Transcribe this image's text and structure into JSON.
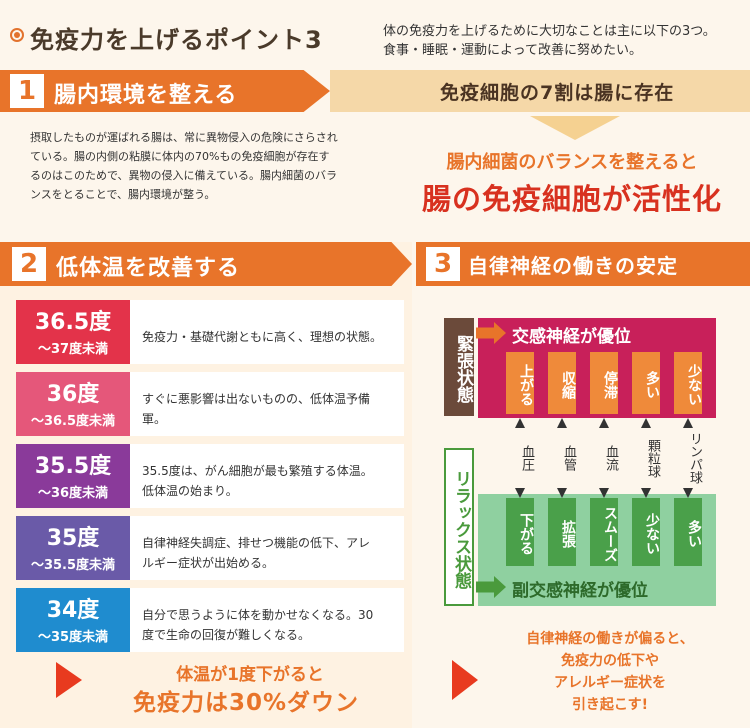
{
  "header": {
    "title": "免疫力を上げるポイント3",
    "intro_line1": "体の免疫力を上げるために大切なことは主に以下の3つ。",
    "intro_line2": "食事・睡眠・運動によって改善に努めたい。"
  },
  "section1": {
    "number": "1",
    "title": "腸内環境を整える",
    "headline": "免疫細胞の7割は腸に存在",
    "body": [
      "摂取したものが運ばれる腸は、常に異物侵入の危険にさらされ",
      "ている。腸の内側の粘膜に体内の70%もの免疫細胞が存在す",
      "るのはこのためで、異物の侵入に備えている。腸内細菌のバラ",
      "ンスをとることで、腸内環境が整う。"
    ],
    "result_top": "腸内細菌のバランスを整えると",
    "result_big": "腸の免疫細胞が活性化"
  },
  "section2": {
    "number": "2",
    "title": "低体温を改善する",
    "rows": [
      {
        "main": "36.5度",
        "sub": "〜37度未満",
        "desc": [
          "免疫力・基礎代謝ともに高く、理想の状態。"
        ],
        "color": "#e3334a"
      },
      {
        "main": "36度",
        "sub": "〜36.5度未満",
        "desc": [
          "すぐに悪影響は出ないものの、低体温予備",
          "軍。"
        ],
        "color": "#e5577a"
      },
      {
        "main": "35.5度",
        "sub": "〜36度未満",
        "desc": [
          "35.5度は、がん細胞が最も繁殖する体温。",
          "低体温の始まり。"
        ],
        "color": "#8a3a9a"
      },
      {
        "main": "35度",
        "sub": "〜35.5度未満",
        "desc": [
          "自律神経失調症、排せつ機能の低下、アレ",
          "ルギー症状が出始める。"
        ],
        "color": "#6a5aa8"
      },
      {
        "main": "34度",
        "sub": "〜35度未満",
        "desc": [
          "自分で思うように体を動かせなくなる。30",
          "度で生命の回復が難しくなる。"
        ],
        "color": "#1f8ccf"
      }
    ],
    "footer_line1": "体温が1度下がると",
    "footer_line2": "免疫力は30%ダウン"
  },
  "section3": {
    "number": "3",
    "title": "自律神経の働きの安定",
    "tense_label": "緊張状態",
    "relax_label": "リラックス状態",
    "sympathetic": "交感神経が優位",
    "parasympathetic": "副交感神経が優位",
    "columns": [
      {
        "top": "上がる",
        "mid": "血圧",
        "bottom": "下がる"
      },
      {
        "top": "収縮",
        "mid": "血管",
        "bottom": "拡張"
      },
      {
        "top": "停滞",
        "mid": "血流",
        "bottom": "スムーズ"
      },
      {
        "top": "多い",
        "mid": "顆粒球",
        "bottom": "少ない"
      },
      {
        "top": "少ない",
        "mid": "リンパ球",
        "bottom": "多い"
      }
    ],
    "footer": [
      "自律神経の働きが偏ると、",
      "免疫力の低下や",
      "アレルギー症状を",
      "引き起こす!"
    ]
  }
}
